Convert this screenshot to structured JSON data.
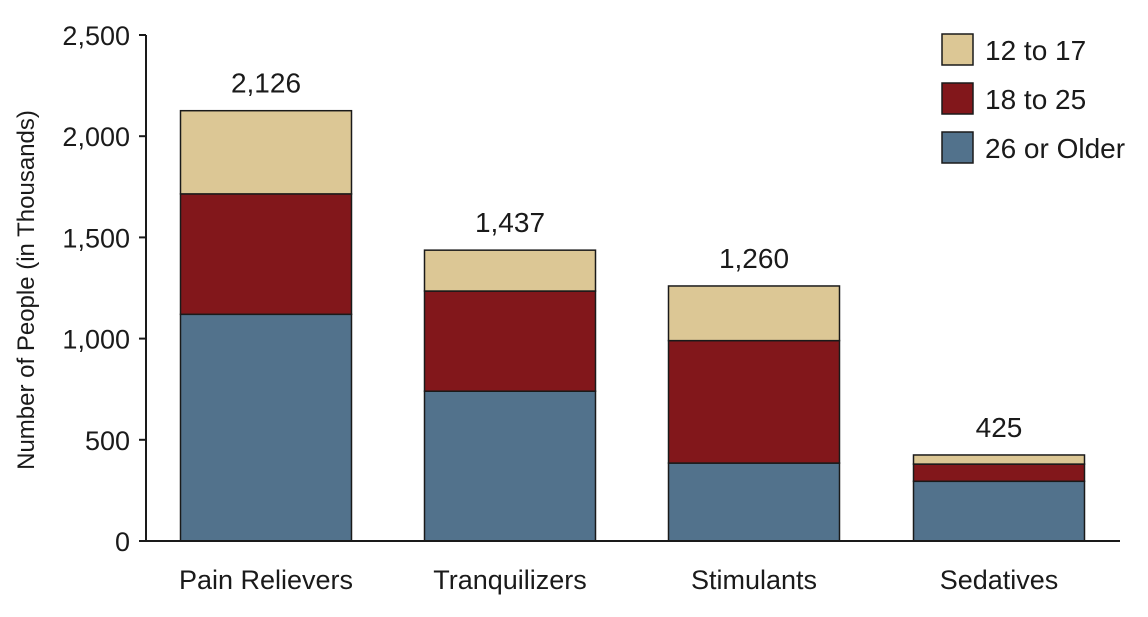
{
  "chart_data": {
    "type": "bar",
    "stacked": true,
    "title": "",
    "xlabel": "",
    "ylabel": "Number of People (in Thousands)",
    "ylim": [
      0,
      2500
    ],
    "yticks": [
      0,
      500,
      1000,
      1500,
      2000,
      2500
    ],
    "ytick_labels": [
      "0",
      "500",
      "1,000",
      "1,500",
      "2,000",
      "2,500"
    ],
    "categories": [
      "Pain Relievers",
      "Tranquilizers",
      "Stimulants",
      "Sedatives"
    ],
    "series": [
      {
        "name": "26 or Older",
        "color": "#52728c",
        "values": [
          1120,
          740,
          385,
          295
        ]
      },
      {
        "name": "18 to 25",
        "color": "#82171b",
        "values": [
          595,
          495,
          605,
          85
        ]
      },
      {
        "name": "12 to 17",
        "color": "#dcc795",
        "values": [
          411,
          202,
          270,
          45
        ]
      }
    ],
    "totals": [
      2126,
      1437,
      1260,
      425
    ],
    "total_labels": [
      "2,126",
      "1,437",
      "1,260",
      "425"
    ],
    "legend": [
      "12 to 17",
      "18 to 25",
      "26 or Older"
    ],
    "legend_position": "top-right",
    "grid": false
  }
}
